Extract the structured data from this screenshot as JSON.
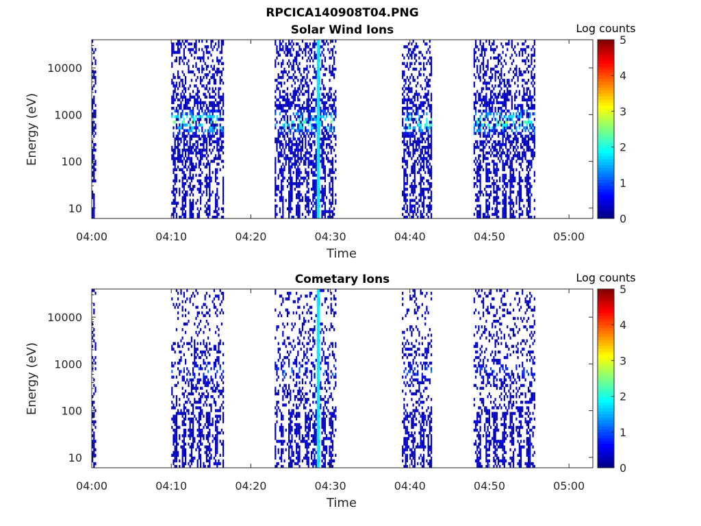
{
  "figure_title": "RPCICA140908T04.PNG",
  "chart_data": [
    {
      "type": "heatmap",
      "title": "Solar Wind Ions",
      "xlabel": "Time",
      "ylabel": "Energy (eV)",
      "x_ticks": [
        "04:00",
        "04:10",
        "04:20",
        "04:30",
        "04:40",
        "04:50",
        "05:00"
      ],
      "xlim": [
        "04:00",
        "05:03"
      ],
      "y_scale": "log",
      "y_ticks": [
        10,
        100,
        1000,
        10000
      ],
      "ylim": [
        6,
        40000
      ],
      "colorbar": {
        "label": "Log counts",
        "ticks": [
          0,
          1,
          2,
          3,
          4,
          5
        ],
        "range": [
          0,
          5
        ],
        "colormap": "jet"
      },
      "bursts": [
        {
          "start": "04:00",
          "end": "04:00",
          "peak_energy_ev": null,
          "peak_log_counts": 0.5
        },
        {
          "start": "04:10",
          "end": "04:16",
          "peak_energy_ev": 700,
          "peak_log_counts": 2.8
        },
        {
          "start": "04:23",
          "end": "04:30",
          "peak_energy_ev": 700,
          "peak_log_counts": 2.6
        },
        {
          "start": "04:39",
          "end": "04:42",
          "peak_energy_ev": 700,
          "peak_log_counts": 2.8
        },
        {
          "start": "04:48",
          "end": "04:55",
          "peak_energy_ev": 700,
          "peak_log_counts": 2.8
        }
      ],
      "vertical_stripe": {
        "time": "04:28",
        "log_counts": 1.8
      }
    },
    {
      "type": "heatmap",
      "title": "Cometary Ions",
      "xlabel": "Time",
      "ylabel": "Energy (eV)",
      "x_ticks": [
        "04:00",
        "04:10",
        "04:20",
        "04:30",
        "04:40",
        "04:50",
        "05:00"
      ],
      "xlim": [
        "04:00",
        "05:03"
      ],
      "y_scale": "log",
      "y_ticks": [
        10,
        100,
        1000,
        10000
      ],
      "ylim": [
        6,
        40000
      ],
      "colorbar": {
        "label": "Log counts",
        "ticks": [
          0,
          1,
          2,
          3,
          4,
          5
        ],
        "range": [
          0,
          5
        ],
        "colormap": "jet"
      },
      "bursts": [
        {
          "start": "04:00",
          "end": "04:00",
          "peak_energy_ev": null,
          "peak_log_counts": 0.3
        },
        {
          "start": "04:10",
          "end": "04:16",
          "peak_energy_ev": 700,
          "peak_log_counts": 1.3
        },
        {
          "start": "04:23",
          "end": "04:30",
          "peak_energy_ev": 700,
          "peak_log_counts": 1.3
        },
        {
          "start": "04:39",
          "end": "04:42",
          "peak_energy_ev": 700,
          "peak_log_counts": 1.3
        },
        {
          "start": "04:48",
          "end": "04:55",
          "peak_energy_ev": 700,
          "peak_log_counts": 1.2
        }
      ],
      "vertical_stripe": {
        "time": "04:28",
        "log_counts": 1.8
      }
    }
  ]
}
